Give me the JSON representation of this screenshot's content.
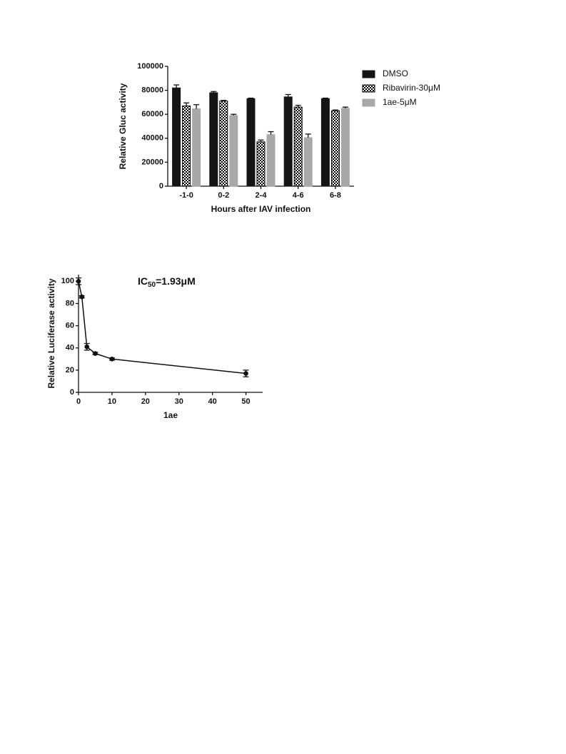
{
  "chart_data": [
    {
      "type": "bar",
      "ylabel": "Relative Gluc activity",
      "xlabel": "Hours after IAV infection",
      "categories": [
        "-1-0",
        "0-2",
        "2-4",
        "4-6",
        "6-8"
      ],
      "series": [
        {
          "name": "DMSO",
          "color": "#151515",
          "values": [
            82000,
            78000,
            73000,
            74500,
            73000
          ],
          "errors": [
            2500,
            1000,
            500,
            2000,
            500
          ]
        },
        {
          "name": "Ribavirin-30μM",
          "color": "#000000",
          "pattern": "checker",
          "values": [
            67000,
            71000,
            37000,
            66000,
            63000
          ],
          "errors": [
            2500,
            600,
            1500,
            1500,
            600
          ]
        },
        {
          "name": "1ae-5μM",
          "color": "#a8a8a8",
          "values": [
            64500,
            59000,
            43000,
            40500,
            65000
          ],
          "errors": [
            3500,
            1000,
            2500,
            3000,
            1000
          ]
        }
      ],
      "ylim": [
        0,
        100000
      ],
      "yticks": [
        0,
        20000,
        40000,
        60000,
        80000,
        100000
      ],
      "legend": "outside-right"
    },
    {
      "type": "line",
      "ylabel": "Relative Luciferase activity",
      "xlabel": "1ae",
      "annotation": {
        "text": "IC",
        "subscript": "50",
        "suffix": "=1.93μM"
      },
      "x": [
        0,
        1,
        2.5,
        5,
        10,
        50
      ],
      "values": [
        100,
        86,
        41,
        35,
        30,
        17
      ],
      "errors": [
        3,
        1,
        3,
        1,
        1,
        3
      ],
      "color": "#111111",
      "xlim": [
        0,
        55
      ],
      "ylim": [
        0,
        106
      ],
      "xticks": [
        0,
        10,
        20,
        30,
        40,
        50
      ],
      "yticks": [
        0,
        20,
        40,
        60,
        80,
        100
      ]
    }
  ]
}
